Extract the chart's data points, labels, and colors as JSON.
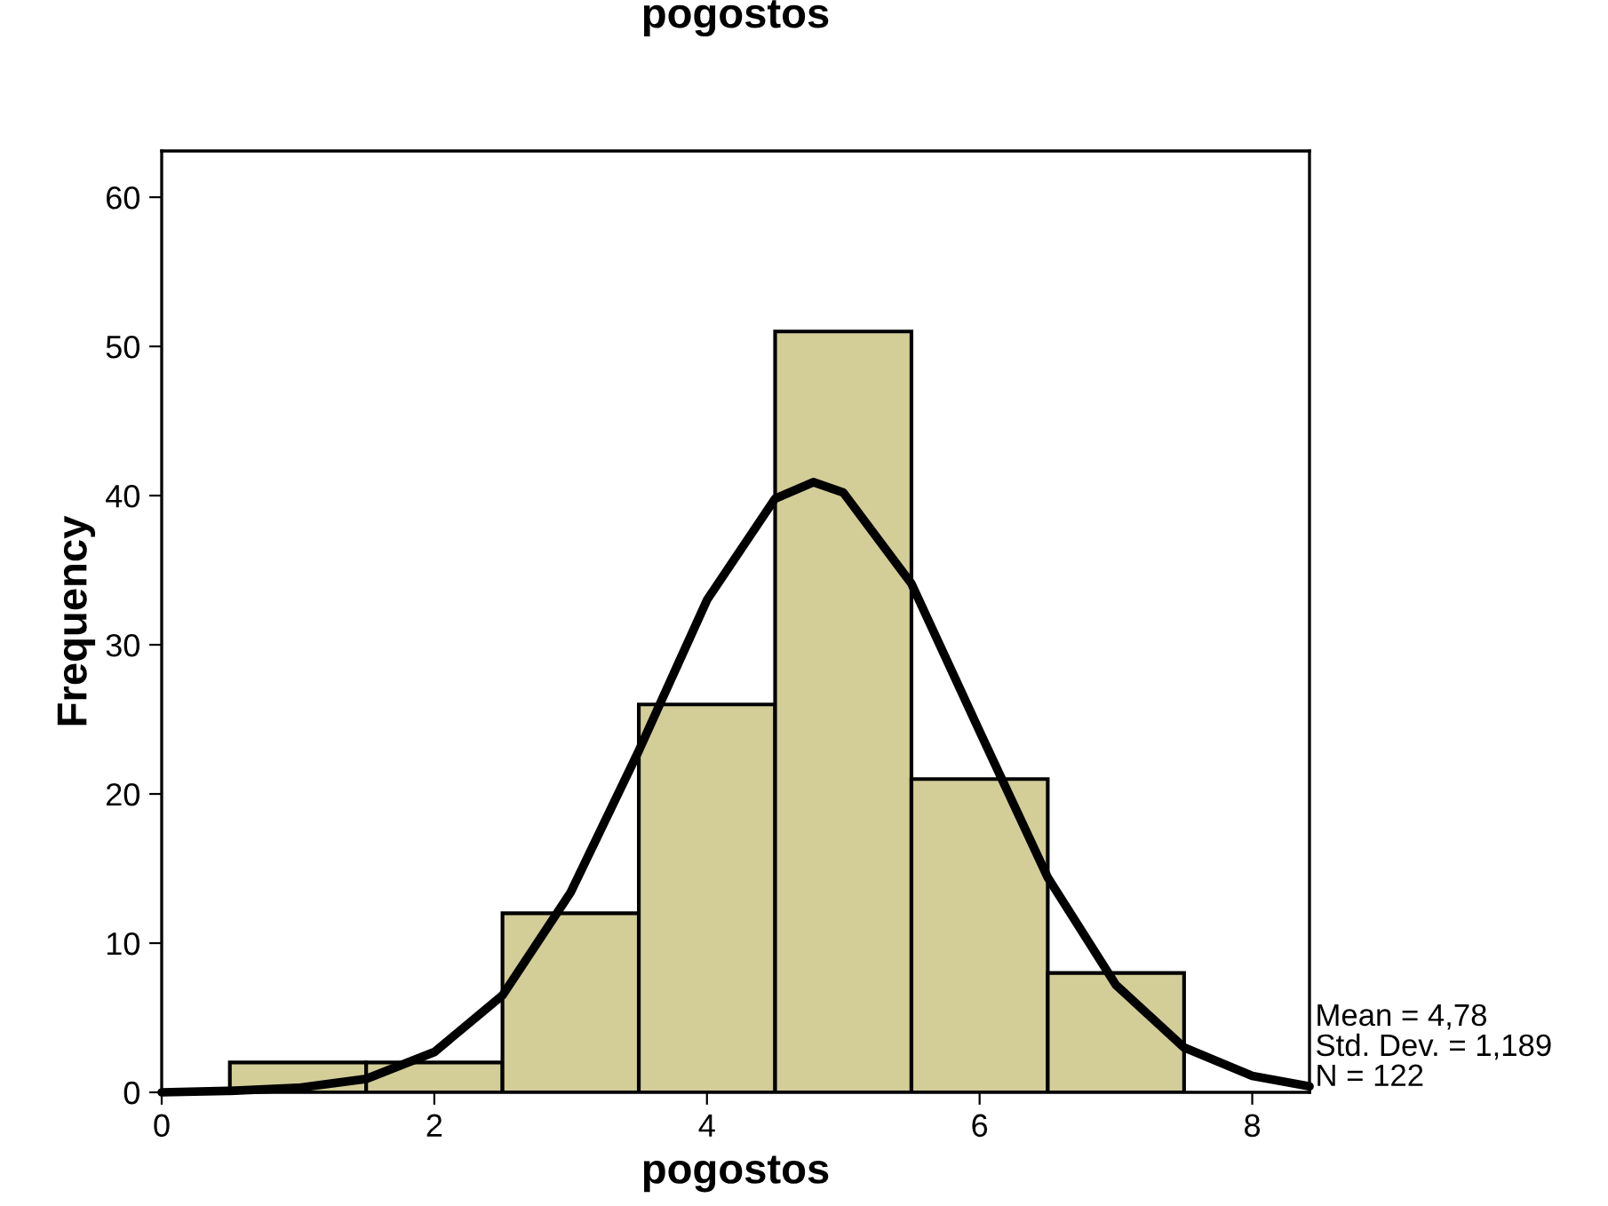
{
  "chart_data": {
    "type": "histogram",
    "title": "pogostos",
    "xlabel": "pogostos",
    "ylabel": "Frequency",
    "bins": [
      0.5,
      1.5,
      2.5,
      3.5,
      4.5,
      5.5,
      6.5,
      7.5
    ],
    "values": [
      2,
      2,
      12,
      26,
      51,
      21,
      8
    ],
    "color": "#d3cd98",
    "series": [
      {
        "type": "line",
        "color": "#000000",
        "x": [
          0,
          0.5,
          1,
          1.5,
          2,
          2.5,
          3,
          3.5,
          4,
          4.5,
          4.78,
          5,
          5.5,
          6,
          6.5,
          7,
          7.5,
          8,
          8.42
        ],
        "values": [
          0.0,
          0.1,
          0.3,
          0.9,
          2.7,
          6.5,
          13.4,
          22.9,
          33.0,
          39.8,
          40.9,
          40.2,
          34.1,
          24.2,
          14.4,
          7.2,
          3.0,
          1.1,
          0.4
        ]
      }
    ],
    "xlim": [
      0,
      8.42
    ],
    "xticks": [
      0,
      2,
      4,
      6,
      8
    ],
    "ylim": [
      0,
      63.1
    ],
    "yticks": [
      0,
      10,
      20,
      30,
      40,
      50,
      60
    ],
    "grid": false,
    "annotations": [
      "Mean = 4,78",
      "Std. Dev. = 1,189",
      "N = 122"
    ]
  }
}
